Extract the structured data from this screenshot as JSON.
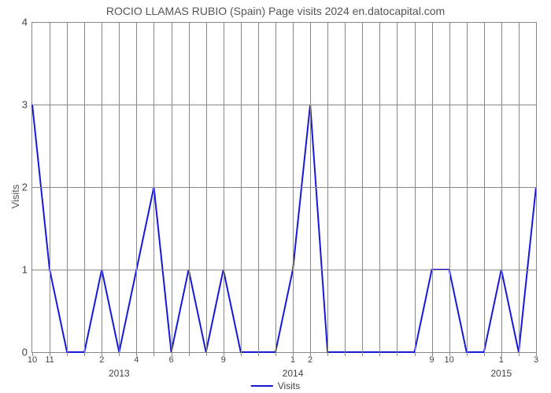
{
  "chart": {
    "type": "line",
    "title": "ROCIO LLAMAS RUBIO (Spain) Page visits 2024 en.datocapital.com",
    "title_fontsize": 14,
    "title_color": "#555558",
    "ylabel": "Visits",
    "label_fontsize": 13,
    "background_color": "#ffffff",
    "grid_color": "#888888",
    "line_color": "#1818d8",
    "line_width": 2,
    "ylim": [
      0,
      4
    ],
    "ytick_step": 1,
    "yticks": [
      0,
      1,
      2,
      3,
      4
    ],
    "x_count": 30,
    "x_labels": [
      "10",
      "11",
      "",
      "",
      "2",
      "",
      "4",
      "",
      "6",
      "",
      "",
      "9",
      "",
      "",
      "",
      "1",
      "2",
      "",
      "",
      "",
      "",
      "",
      "",
      "9",
      "10",
      "",
      "",
      "1",
      "",
      "3"
    ],
    "x_years": [
      {
        "label": "2013",
        "index": 5
      },
      {
        "label": "2014",
        "index": 15
      },
      {
        "label": "2015",
        "index": 27
      }
    ],
    "values": [
      3,
      1,
      0,
      0,
      1,
      0,
      1,
      2,
      0,
      1,
      0,
      1,
      0,
      0,
      0,
      1,
      3,
      0,
      0,
      0,
      0,
      0,
      0,
      1,
      1,
      0,
      0,
      1,
      0,
      2
    ],
    "legend_label": "Visits"
  }
}
